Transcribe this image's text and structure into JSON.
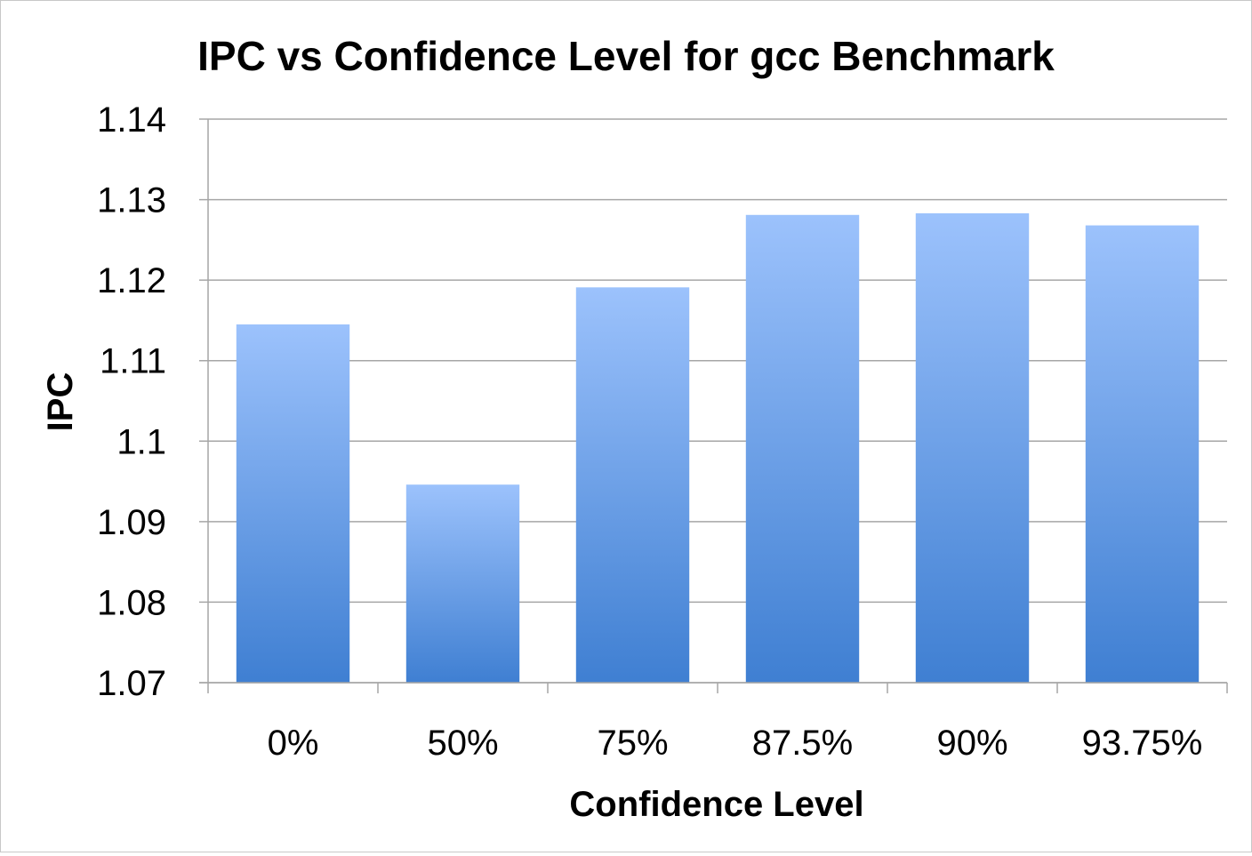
{
  "chart_data": {
    "type": "bar",
    "title": "IPC vs Confidence Level for gcc Benchmark",
    "xlabel": "Confidence Level",
    "ylabel": "IPC",
    "categories": [
      "0%",
      "50%",
      "75%",
      "87.5%",
      "90%",
      "93.75%"
    ],
    "values": [
      1.1145,
      1.0946,
      1.1191,
      1.1281,
      1.1283,
      1.1268
    ],
    "ylim": [
      1.07,
      1.14
    ],
    "yticks": [
      "1.07",
      "1.08",
      "1.09",
      "1.1",
      "1.11",
      "1.12",
      "1.13",
      "1.14"
    ],
    "grid": true,
    "legend": "none",
    "colors": {
      "bar_top": "#9cc2fc",
      "bar_bottom": "#3f7fd2",
      "grid": "#a6a6a6",
      "axis": "#a6a6a6",
      "text": "#000000"
    }
  }
}
